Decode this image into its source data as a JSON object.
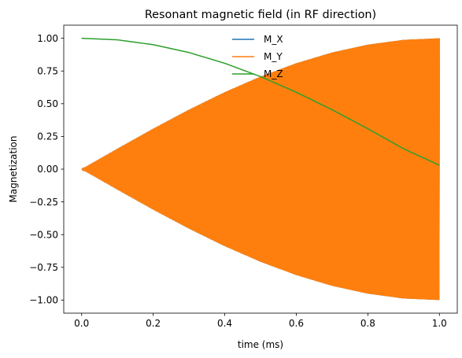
{
  "chart_data": {
    "type": "line",
    "title": "Resonant magnetic field (in RF direction)",
    "xlabel": "time (ms)",
    "ylabel": "Magnetization",
    "xlim": [
      -0.05,
      1.05
    ],
    "ylim": [
      -1.1,
      1.1
    ],
    "xticks": [
      0.0,
      0.2,
      0.4,
      0.6,
      0.8,
      1.0
    ],
    "xtick_labels": [
      "0.0",
      "0.2",
      "0.4",
      "0.6",
      "0.8",
      "1.0"
    ],
    "yticks": [
      -1.0,
      -0.75,
      -0.5,
      -0.25,
      0.0,
      0.25,
      0.5,
      0.75,
      1.0
    ],
    "ytick_labels": [
      "−1.00",
      "−0.75",
      "−0.50",
      "−0.25",
      "0.00",
      "0.25",
      "0.50",
      "0.75",
      "1.00"
    ],
    "grid": false,
    "legend": "top-center",
    "series": [
      {
        "name": "M_X",
        "color": "#1f77b4",
        "style": "rapid oscillation filling envelope",
        "x": [
          0.0,
          0.1,
          0.2,
          0.3,
          0.4,
          0.5,
          0.6,
          0.7,
          0.8,
          0.9,
          1.0
        ],
        "envelope": [
          0.0,
          0.156,
          0.309,
          0.454,
          0.588,
          0.707,
          0.809,
          0.891,
          0.951,
          0.988,
          1.0
        ]
      },
      {
        "name": "M_Y",
        "color": "#ff7f0e",
        "style": "rapid oscillation filling envelope",
        "x": [
          0.0,
          0.1,
          0.2,
          0.3,
          0.4,
          0.5,
          0.6,
          0.7,
          0.8,
          0.9,
          1.0
        ],
        "envelope": [
          0.0,
          0.156,
          0.309,
          0.454,
          0.588,
          0.707,
          0.809,
          0.891,
          0.951,
          0.988,
          1.0
        ]
      },
      {
        "name": "M_Z",
        "color": "#2ca02c",
        "style": "line",
        "x": [
          0.0,
          0.1,
          0.2,
          0.3,
          0.4,
          0.5,
          0.6,
          0.7,
          0.8,
          0.9,
          1.0
        ],
        "values": [
          1.0,
          0.988,
          0.951,
          0.891,
          0.809,
          0.707,
          0.588,
          0.454,
          0.309,
          0.156,
          0.03
        ]
      }
    ]
  }
}
